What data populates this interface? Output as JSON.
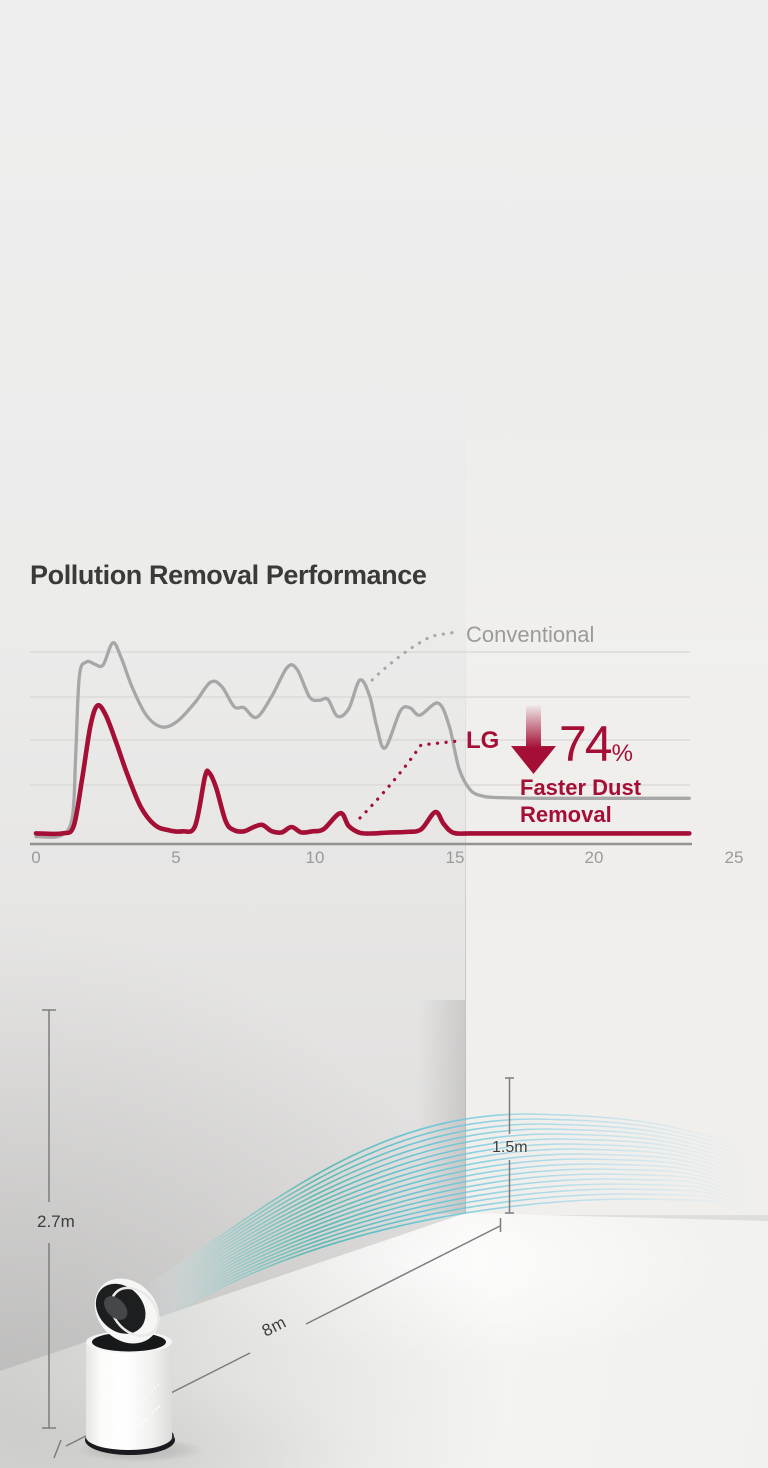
{
  "chart": {
    "title": "Pollution Removal Performance",
    "legend_conventional": "Conventional",
    "legend_lg": "LG",
    "callout": {
      "value": "74",
      "unit": "%",
      "line1": "Faster Dust",
      "line2": "Removal"
    },
    "x_ticks": [
      "0",
      "5",
      "10",
      "15",
      "20",
      "25"
    ]
  },
  "chart_data": {
    "type": "line",
    "title": "Pollution Removal Performance",
    "xlabel": "",
    "ylabel": "",
    "x_range": [
      0,
      25
    ],
    "x_tick_labels": [
      0,
      5,
      10,
      15,
      20,
      25
    ],
    "y_scale": "relative dust level, 0-100 (estimated from gridlines, no y labels shown)",
    "grid": "horizontal",
    "annotation": {
      "text": "74% Faster Dust Removal",
      "color": "#a50f36",
      "symbol": "down-arrow"
    },
    "series": [
      {
        "name": "Conventional",
        "color": "#a7a7a7",
        "points": [
          [
            0,
            3
          ],
          [
            0.9,
            3.5
          ],
          [
            1.3,
            12
          ],
          [
            1.42,
            40
          ],
          [
            1.55,
            78
          ],
          [
            1.8,
            85
          ],
          [
            2.1,
            84
          ],
          [
            2.4,
            83.5
          ],
          [
            2.75,
            94
          ],
          [
            3.05,
            87
          ],
          [
            3.45,
            73
          ],
          [
            3.95,
            60
          ],
          [
            4.5,
            54.5
          ],
          [
            5.05,
            57
          ],
          [
            5.7,
            66
          ],
          [
            6.25,
            75.5
          ],
          [
            6.65,
            73.5
          ],
          [
            7.1,
            64
          ],
          [
            7.45,
            63.5
          ],
          [
            7.9,
            59
          ],
          [
            8.45,
            69
          ],
          [
            9.0,
            82.5
          ],
          [
            9.35,
            81.5
          ],
          [
            9.8,
            68.5
          ],
          [
            10.15,
            67
          ],
          [
            10.45,
            67.5
          ],
          [
            10.8,
            59.5
          ],
          [
            11.2,
            63
          ],
          [
            11.6,
            76.5
          ],
          [
            11.95,
            69
          ],
          [
            12.2,
            55
          ],
          [
            12.5,
            44.6
          ],
          [
            13.05,
            62
          ],
          [
            13.4,
            63.4
          ],
          [
            13.75,
            60
          ],
          [
            14.4,
            65.7
          ],
          [
            14.8,
            55
          ],
          [
            15.15,
            35
          ],
          [
            15.55,
            25
          ],
          [
            16.0,
            22
          ],
          [
            16.6,
            21.3
          ],
          [
            18,
            21
          ],
          [
            20,
            21
          ],
          [
            23.4,
            21
          ]
        ]
      },
      {
        "name": "LG",
        "color": "#a50f36",
        "points": [
          [
            0,
            4.5
          ],
          [
            0.95,
            4.5
          ],
          [
            1.35,
            8
          ],
          [
            1.65,
            30
          ],
          [
            1.95,
            55
          ],
          [
            2.2,
            64.5
          ],
          [
            2.5,
            60
          ],
          [
            2.85,
            48
          ],
          [
            3.25,
            33
          ],
          [
            3.75,
            17
          ],
          [
            4.25,
            8.5
          ],
          [
            4.75,
            6
          ],
          [
            5.25,
            5.5
          ],
          [
            5.7,
            8
          ],
          [
            6.05,
            31
          ],
          [
            6.2,
            33
          ],
          [
            6.45,
            26
          ],
          [
            6.8,
            10
          ],
          [
            7.1,
            6
          ],
          [
            7.45,
            5.5
          ],
          [
            7.8,
            7.5
          ],
          [
            8.1,
            8.5
          ],
          [
            8.45,
            5.5
          ],
          [
            8.8,
            5
          ],
          [
            9.15,
            7.5
          ],
          [
            9.5,
            5
          ],
          [
            9.9,
            5.5
          ],
          [
            10.3,
            6.5
          ],
          [
            10.9,
            14
          ],
          [
            11.2,
            8
          ],
          [
            11.6,
            4.8
          ],
          [
            12.1,
            4.5
          ],
          [
            12.7,
            5
          ],
          [
            13.3,
            5.2
          ],
          [
            13.8,
            6.5
          ],
          [
            14.3,
            14.5
          ],
          [
            14.6,
            9
          ],
          [
            14.95,
            4.8
          ],
          [
            15.6,
            4.5
          ],
          [
            17,
            4.5
          ],
          [
            19,
            4.5
          ],
          [
            21,
            4.5
          ],
          [
            23.4,
            4.5
          ]
        ]
      }
    ]
  },
  "scene": {
    "room_height_label": "2.7m",
    "airflow_height_label": "1.5m",
    "airflow_distance_label": "8m",
    "device": "air purifier with tilted circulator fan",
    "airflow_color_teal": "#3ab2aa",
    "airflow_color_blue": "#8cd0e6"
  },
  "colors": {
    "accent": "#a50f36",
    "curve_gray": "#a7a7a7",
    "text_dark": "#3b3a39",
    "text_gray": "#9c9b9a",
    "dim_line": "#7d7d7d"
  }
}
